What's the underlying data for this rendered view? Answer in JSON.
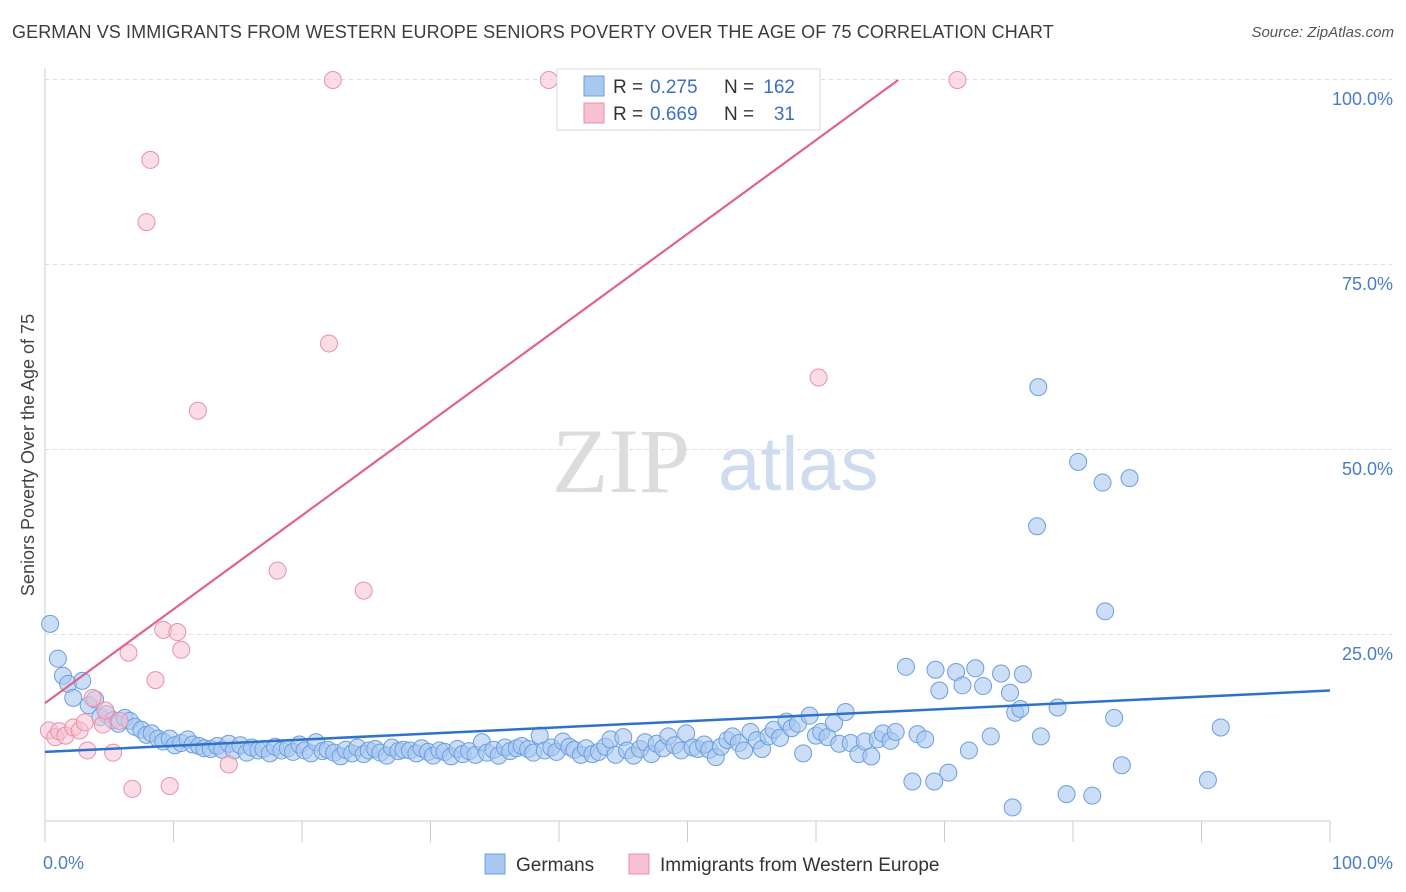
{
  "title": "GERMAN VS IMMIGRANTS FROM WESTERN EUROPE SENIORS POVERTY OVER THE AGE OF 75 CORRELATION CHART",
  "source": "Source: ZipAtlas.com",
  "watermark": {
    "zip": "ZIP",
    "atlas": "atlas"
  },
  "colors": {
    "germans_fill": "#a9c8f0",
    "germans_stroke": "#6c9ee0",
    "germans_line": "#2f72c9",
    "immigrants_fill": "#f7c1d2",
    "immigrants_stroke": "#e890ab",
    "immigrants_line": "#e0628d",
    "tick_text": "#4a7cc9",
    "grid": "#dddddd"
  },
  "legend": {
    "rows": [
      {
        "r_label": "R =",
        "r_value": "0.275",
        "n_label": "N =",
        "n_value": "162"
      },
      {
        "r_label": "R =",
        "r_value": "0.669",
        "n_label": "N =",
        "n_value": "31"
      }
    ]
  },
  "bottom_legend": {
    "germans": "Germans",
    "immigrants": "Immigrants from Western Europe"
  },
  "chart_data": {
    "type": "scatter",
    "title": "GERMAN VS IMMIGRANTS FROM WESTERN EUROPE SENIORS POVERTY OVER THE AGE OF 75 CORRELATION CHART",
    "xlabel": "",
    "ylabel": "Seniors Poverty Over the Age of 75",
    "xlim": [
      0,
      100
    ],
    "ylim": [
      0,
      100
    ],
    "x_tick_labels": [
      "0.0%",
      "100.0%"
    ],
    "y_tick_labels": [
      "25.0%",
      "50.0%",
      "75.0%",
      "100.0%"
    ],
    "y_tick_values": [
      25,
      50,
      75,
      100
    ],
    "legend_placement": "top-center",
    "grid": true,
    "series": [
      {
        "name": "Germans",
        "R": 0.275,
        "N": 162,
        "trend": {
          "x": [
            0,
            100
          ],
          "y": [
            9.2,
            17.5
          ]
        },
        "points": [
          [
            0.4,
            26.5
          ],
          [
            1,
            21.8
          ],
          [
            1.4,
            19.5
          ],
          [
            1.8,
            18.4
          ],
          [
            2.2,
            16.5
          ],
          [
            2.9,
            18.8
          ],
          [
            3.4,
            15.5
          ],
          [
            3.9,
            16.3
          ],
          [
            4.3,
            13.9
          ],
          [
            4.8,
            14.3
          ],
          [
            5.3,
            13.5
          ],
          [
            5.7,
            13
          ],
          [
            6.2,
            13.8
          ],
          [
            6.6,
            13.4
          ],
          [
            7,
            12.6
          ],
          [
            7.5,
            12.2
          ],
          [
            7.9,
            11.5
          ],
          [
            8.3,
            11.7
          ],
          [
            8.8,
            11
          ],
          [
            9.2,
            10.6
          ],
          [
            9.7,
            11
          ],
          [
            10.1,
            10.1
          ],
          [
            10.6,
            10.4
          ],
          [
            11.1,
            10.9
          ],
          [
            11.5,
            10.2
          ],
          [
            12,
            10
          ],
          [
            12.4,
            9.7
          ],
          [
            12.9,
            9.6
          ],
          [
            13.4,
            10
          ],
          [
            13.8,
            9.5
          ],
          [
            14.3,
            10.3
          ],
          [
            14.7,
            9.4
          ],
          [
            15.2,
            10.1
          ],
          [
            15.7,
            9.1
          ],
          [
            16.1,
            9.8
          ],
          [
            16.6,
            9.4
          ],
          [
            17,
            9.6
          ],
          [
            17.5,
            9
          ],
          [
            17.9,
            9.9
          ],
          [
            18.4,
            9.4
          ],
          [
            18.9,
            9.7
          ],
          [
            19.3,
            9.2
          ],
          [
            19.8,
            10.2
          ],
          [
            20.2,
            9.4
          ],
          [
            20.7,
            9
          ],
          [
            21.1,
            10.5
          ],
          [
            21.6,
            9.3
          ],
          [
            22,
            9.5
          ],
          [
            22.5,
            9.1
          ],
          [
            23,
            8.6
          ],
          [
            23.4,
            9.5
          ],
          [
            23.9,
            9
          ],
          [
            24.3,
            9.8
          ],
          [
            24.8,
            8.9
          ],
          [
            25.2,
            9.4
          ],
          [
            25.7,
            9.6
          ],
          [
            26.1,
            9.1
          ],
          [
            26.6,
            8.7
          ],
          [
            27,
            9.8
          ],
          [
            27.5,
            9.3
          ],
          [
            27.9,
            9.5
          ],
          [
            28.4,
            9.4
          ],
          [
            28.9,
            9
          ],
          [
            29.3,
            9.7
          ],
          [
            29.8,
            9.2
          ],
          [
            30.2,
            8.7
          ],
          [
            30.7,
            9.4
          ],
          [
            31.1,
            9.2
          ],
          [
            31.6,
            8.6
          ],
          [
            32.1,
            9.6
          ],
          [
            32.5,
            8.9
          ],
          [
            33,
            9.3
          ],
          [
            33.5,
            8.8
          ],
          [
            34,
            10.5
          ],
          [
            34.4,
            9.1
          ],
          [
            34.9,
            9.5
          ],
          [
            35.3,
            8.7
          ],
          [
            35.8,
            9.8
          ],
          [
            36.2,
            9.3
          ],
          [
            36.7,
            9.7
          ],
          [
            37.1,
            10
          ],
          [
            37.6,
            9.6
          ],
          [
            38,
            9.1
          ],
          [
            38.5,
            11.4
          ],
          [
            38.9,
            9.4
          ],
          [
            39.4,
            9.8
          ],
          [
            39.8,
            9.2
          ],
          [
            40.3,
            10.6
          ],
          [
            40.8,
            9.9
          ],
          [
            41.2,
            9.5
          ],
          [
            41.7,
            8.8
          ],
          [
            42.1,
            9.7
          ],
          [
            42.6,
            8.9
          ],
          [
            43.1,
            9.2
          ],
          [
            43.6,
            9.9
          ],
          [
            44,
            10.9
          ],
          [
            44.4,
            8.8
          ],
          [
            45,
            11.2
          ],
          [
            45.3,
            9.4
          ],
          [
            45.8,
            8.7
          ],
          [
            46.3,
            9.6
          ],
          [
            46.7,
            10.5
          ],
          [
            47.2,
            8.9
          ],
          [
            47.6,
            10.3
          ],
          [
            48.1,
            9.7
          ],
          [
            48.5,
            11.3
          ],
          [
            49,
            10.1
          ],
          [
            49.5,
            9.4
          ],
          [
            49.9,
            11.7
          ],
          [
            50.4,
            9.8
          ],
          [
            50.8,
            9.6
          ],
          [
            51.3,
            10.2
          ],
          [
            51.7,
            9.5
          ],
          [
            52.2,
            8.5
          ],
          [
            52.6,
            9.9
          ],
          [
            53.1,
            10.8
          ],
          [
            53.5,
            11.3
          ],
          [
            54,
            10.4
          ],
          [
            54.4,
            9.4
          ],
          [
            54.9,
            11.9
          ],
          [
            55.4,
            10.8
          ],
          [
            55.8,
            9.6
          ],
          [
            56.3,
            11.3
          ],
          [
            56.7,
            12.2
          ],
          [
            57.2,
            11.1
          ],
          [
            57.7,
            13.3
          ],
          [
            58.1,
            12.4
          ],
          [
            58.6,
            13
          ],
          [
            59,
            9
          ],
          [
            59.5,
            14.1
          ],
          [
            60,
            11.4
          ],
          [
            60.4,
            11.9
          ],
          [
            60.9,
            11.2
          ],
          [
            61.4,
            13.1
          ],
          [
            61.8,
            10.3
          ],
          [
            62.3,
            14.6
          ],
          [
            62.7,
            10.4
          ],
          [
            63.3,
            8.9
          ],
          [
            63.8,
            10.6
          ],
          [
            64.3,
            8.6
          ],
          [
            64.8,
            10.9
          ],
          [
            65.2,
            11.7
          ],
          [
            65.8,
            10.7
          ],
          [
            66.2,
            11.9
          ],
          [
            67,
            20.7
          ],
          [
            67.9,
            11.6
          ],
          [
            68.5,
            10.9
          ],
          [
            69.3,
            20.3
          ],
          [
            69.6,
            17.5
          ],
          [
            70.9,
            20
          ],
          [
            71.4,
            18.2
          ],
          [
            71.9,
            9.4
          ],
          [
            72.4,
            20.5
          ],
          [
            73,
            18.1
          ],
          [
            73.6,
            11.3
          ],
          [
            74.4,
            19.8
          ],
          [
            75.1,
            17.2
          ],
          [
            75.5,
            14.5
          ],
          [
            76.1,
            19.7
          ],
          [
            77.3,
            58.5
          ],
          [
            77.5,
            11.3
          ],
          [
            78.8,
            15.2
          ],
          [
            80.4,
            48.4
          ],
          [
            82.3,
            45.6
          ],
          [
            82.5,
            28.2
          ],
          [
            83.2,
            13.8
          ],
          [
            83.8,
            7.4
          ],
          [
            84.4,
            46.2
          ],
          [
            75.3,
            1.7
          ],
          [
            79.5,
            3.5
          ],
          [
            67.5,
            5.2
          ],
          [
            70.3,
            6.4
          ],
          [
            69.2,
            5.2
          ],
          [
            90.5,
            5.4
          ],
          [
            75.9,
            15
          ],
          [
            77.2,
            39.7
          ],
          [
            81.5,
            3.3
          ],
          [
            91.5,
            12.5
          ]
        ]
      },
      {
        "name": "Immigrants from Western Europe",
        "R": 0.669,
        "N": 31,
        "trend": {
          "x": [
            0,
            66.4
          ],
          "y": [
            15.8,
            100
          ]
        },
        "points": [
          [
            0.3,
            12.1
          ],
          [
            0.8,
            11.2
          ],
          [
            1.1,
            12
          ],
          [
            1.6,
            11.4
          ],
          [
            2.2,
            12.5
          ],
          [
            2.7,
            12.1
          ],
          [
            3.3,
            9.4
          ],
          [
            3.7,
            16.5
          ],
          [
            4.5,
            12.9
          ],
          [
            5.3,
            9.1
          ],
          [
            5.8,
            13.4
          ],
          [
            6.5,
            22.6
          ],
          [
            6.8,
            4.2
          ],
          [
            7.9,
            80.8
          ],
          [
            8.2,
            89.2
          ],
          [
            8.6,
            18.9
          ],
          [
            9.2,
            25.7
          ],
          [
            9.7,
            4.6
          ],
          [
            10.3,
            25.4
          ],
          [
            10.6,
            23
          ],
          [
            11.9,
            55.3
          ],
          [
            14.3,
            7.5
          ],
          [
            18.1,
            33.7
          ],
          [
            22.1,
            64.4
          ],
          [
            22.4,
            100
          ],
          [
            24.8,
            31
          ],
          [
            39.2,
            100
          ],
          [
            60.2,
            59.8
          ],
          [
            71,
            100
          ],
          [
            4.7,
            14.8
          ],
          [
            3.1,
            13.2
          ]
        ]
      }
    ]
  }
}
